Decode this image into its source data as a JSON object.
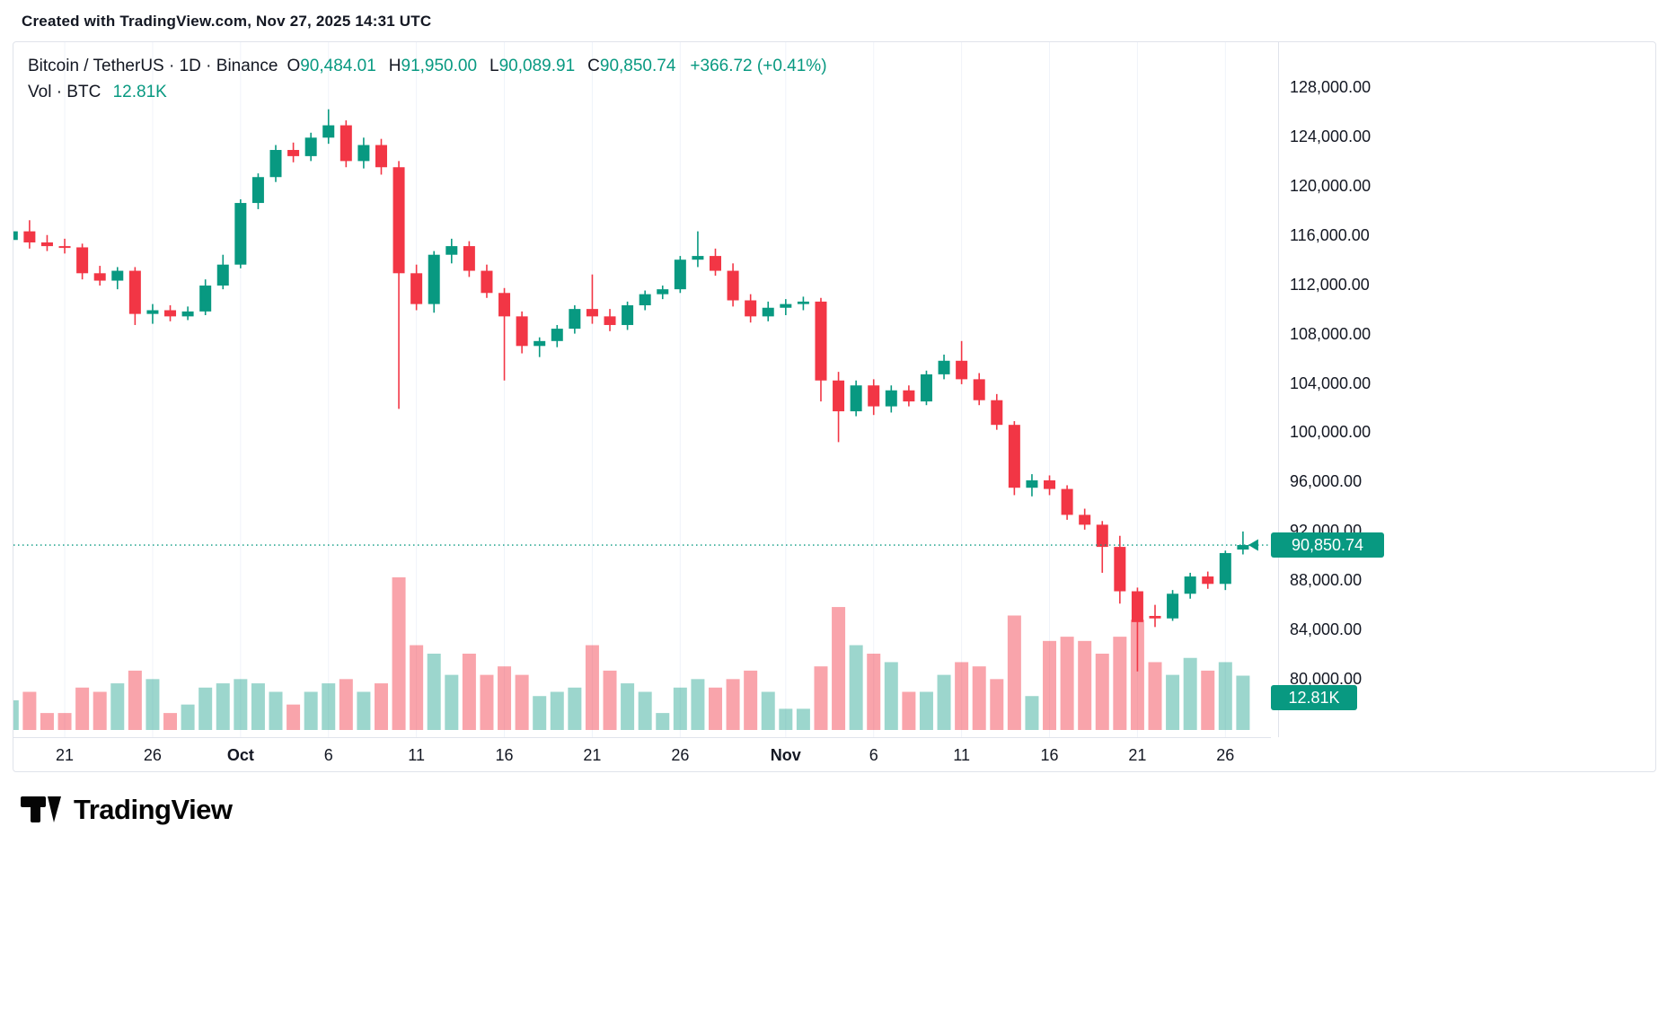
{
  "attribution": "Created with TradingView.com, Nov 27, 2025 14:31 UTC",
  "legend": {
    "symbol": "Bitcoin / TetherUS · 1D · Binance",
    "o_label": "O",
    "o_value": "90,484.01",
    "h_label": "H",
    "h_value": "91,950.00",
    "l_label": "L",
    "l_value": "90,089.91",
    "c_label": "C",
    "c_value": "90,850.74",
    "change": "+366.72 (+0.41%)",
    "vol_label": "Vol · BTC",
    "vol_value": "12.81K"
  },
  "price_axis": {
    "current_price_badge": "90,850.74",
    "volume_badge": "12.81K"
  },
  "footer": {
    "brand": "TradingView"
  },
  "colors": {
    "up": "#089981",
    "down": "#F23645",
    "vol_up": "rgba(8,153,129,0.40)",
    "vol_down": "rgba(242,54,69,0.45)",
    "grid": "#f0f3fa",
    "axis_text": "#131722",
    "badge_bg": "#089981",
    "badge_text": "#ffffff"
  },
  "chart_data": {
    "type": "candlestick",
    "title": "Bitcoin / TetherUS · 1D · Binance",
    "symbol": "Bitcoin / TetherUS",
    "interval": "1D",
    "exchange": "Binance",
    "last": {
      "open": 90484.01,
      "high": 91950.0,
      "low": 90089.91,
      "close": 90850.74,
      "change_text": "+366.72 (+0.41%)"
    },
    "current_price": 90850.74,
    "current_volume_k_btc": 12.81,
    "volume_unit": "K BTC",
    "y_axis": {
      "min": 80000,
      "max": 128000,
      "tick_step": 4000
    },
    "y_tick_labels": [
      "128,000.00",
      "124,000.00",
      "120,000.00",
      "116,000.00",
      "112,000.00",
      "108,000.00",
      "104,000.00",
      "100,000.00",
      "96,000.00",
      "92,000.00",
      "88,000.00",
      "84,000.00",
      "80,000.00"
    ],
    "x_ticks": [
      {
        "text": "21",
        "i": 3,
        "bold": false
      },
      {
        "text": "26",
        "i": 8,
        "bold": false
      },
      {
        "text": "Oct",
        "i": 13,
        "bold": true
      },
      {
        "text": "6",
        "i": 18,
        "bold": false
      },
      {
        "text": "11",
        "i": 23,
        "bold": false
      },
      {
        "text": "16",
        "i": 28,
        "bold": false
      },
      {
        "text": "21",
        "i": 33,
        "bold": false
      },
      {
        "text": "26",
        "i": 38,
        "bold": false
      },
      {
        "text": "Nov",
        "i": 44,
        "bold": true
      },
      {
        "text": "6",
        "i": 49,
        "bold": false
      },
      {
        "text": "11",
        "i": 54,
        "bold": false
      },
      {
        "text": "16",
        "i": 59,
        "bold": false
      },
      {
        "text": "21",
        "i": 64,
        "bold": false
      },
      {
        "text": "26",
        "i": 69,
        "bold": false
      }
    ],
    "columns": [
      "date",
      "open",
      "high",
      "low",
      "close",
      "volume_k_btc"
    ],
    "candles": [
      [
        "Sep 18",
        115600,
        116900,
        115100,
        116300,
        7
      ],
      [
        "Sep 19",
        116300,
        117200,
        114900,
        115400,
        9
      ],
      [
        "Sep 20",
        115400,
        116000,
        114700,
        115100,
        4
      ],
      [
        "Sep 21",
        115100,
        115700,
        114500,
        115000,
        4
      ],
      [
        "Sep 22",
        115000,
        115300,
        112400,
        112900,
        10
      ],
      [
        "Sep 23",
        112900,
        113500,
        111900,
        112300,
        9
      ],
      [
        "Sep 24",
        112300,
        113400,
        111600,
        113100,
        11
      ],
      [
        "Sep 25",
        113100,
        113400,
        108700,
        109600,
        14
      ],
      [
        "Sep 26",
        109600,
        110400,
        108800,
        109900,
        12
      ],
      [
        "Sep 27",
        109900,
        110300,
        109000,
        109400,
        4
      ],
      [
        "Sep 28",
        109400,
        110200,
        109100,
        109800,
        6
      ],
      [
        "Sep 29",
        109800,
        112400,
        109500,
        111900,
        10
      ],
      [
        "Sep 30",
        111900,
        114400,
        111600,
        113600,
        11
      ],
      [
        "Oct 1",
        113600,
        118900,
        113300,
        118600,
        12
      ],
      [
        "Oct 2",
        118600,
        121000,
        118100,
        120700,
        11
      ],
      [
        "Oct 3",
        120700,
        123300,
        120300,
        122900,
        9
      ],
      [
        "Oct 4",
        122900,
        123500,
        121900,
        122400,
        6
      ],
      [
        "Oct 5",
        122400,
        124300,
        122000,
        123900,
        9
      ],
      [
        "Oct 6",
        123900,
        126200,
        123400,
        124900,
        11
      ],
      [
        "Oct 7",
        124900,
        125300,
        121500,
        122000,
        12
      ],
      [
        "Oct 8",
        122000,
        123900,
        121400,
        123300,
        9
      ],
      [
        "Oct 9",
        123300,
        123800,
        120900,
        121500,
        11
      ],
      [
        "Oct 10",
        121500,
        122000,
        101900,
        112900,
        36
      ],
      [
        "Oct 11",
        112900,
        113600,
        109900,
        110400,
        20
      ],
      [
        "Oct 12",
        110400,
        114700,
        109700,
        114400,
        18
      ],
      [
        "Oct 13",
        114400,
        115700,
        113700,
        115100,
        13
      ],
      [
        "Oct 14",
        115100,
        115500,
        112600,
        113100,
        18
      ],
      [
        "Oct 15",
        113100,
        113600,
        110900,
        111300,
        13
      ],
      [
        "Oct 16",
        111300,
        111700,
        104200,
        109400,
        15
      ],
      [
        "Oct 17",
        109400,
        109800,
        106400,
        107000,
        13
      ],
      [
        "Oct 18",
        107000,
        107700,
        106100,
        107400,
        8
      ],
      [
        "Oct 19",
        107400,
        108700,
        106900,
        108400,
        9
      ],
      [
        "Oct 20",
        108400,
        110300,
        108000,
        110000,
        10
      ],
      [
        "Oct 21",
        110000,
        112800,
        108800,
        109400,
        20
      ],
      [
        "Oct 22",
        109400,
        110000,
        108200,
        108700,
        14
      ],
      [
        "Oct 23",
        108700,
        110600,
        108300,
        110300,
        11
      ],
      [
        "Oct 24",
        110300,
        111500,
        109900,
        111200,
        9
      ],
      [
        "Oct 25",
        111200,
        111900,
        110800,
        111600,
        4
      ],
      [
        "Oct 26",
        111600,
        114300,
        111300,
        114000,
        10
      ],
      [
        "Oct 27",
        114000,
        116300,
        113400,
        114300,
        12
      ],
      [
        "Oct 28",
        114300,
        114900,
        112700,
        113100,
        10
      ],
      [
        "Oct 29",
        113100,
        113700,
        110200,
        110700,
        12
      ],
      [
        "Oct 30",
        110700,
        111200,
        108900,
        109400,
        14
      ],
      [
        "Oct 31",
        109400,
        110600,
        109000,
        110100,
        9
      ],
      [
        "Nov 1",
        110100,
        110800,
        109500,
        110400,
        5
      ],
      [
        "Nov 2",
        110400,
        111000,
        109900,
        110600,
        5
      ],
      [
        "Nov 3",
        110600,
        110900,
        102500,
        104200,
        15
      ],
      [
        "Nov 4",
        104200,
        104900,
        99200,
        101700,
        29
      ],
      [
        "Nov 5",
        101700,
        104200,
        101300,
        103800,
        20
      ],
      [
        "Nov 6",
        103800,
        104300,
        101400,
        102100,
        18
      ],
      [
        "Nov 7",
        102100,
        103800,
        101600,
        103400,
        16
      ],
      [
        "Nov 8",
        103400,
        103800,
        102100,
        102500,
        9
      ],
      [
        "Nov 9",
        102500,
        105000,
        102200,
        104700,
        9
      ],
      [
        "Nov 10",
        104700,
        106300,
        104300,
        105800,
        13
      ],
      [
        "Nov 11",
        105800,
        107400,
        103900,
        104300,
        16
      ],
      [
        "Nov 12",
        104300,
        104800,
        102200,
        102600,
        15
      ],
      [
        "Nov 13",
        102600,
        103100,
        100200,
        100600,
        12
      ],
      [
        "Nov 14",
        100600,
        100900,
        94900,
        95500,
        27
      ],
      [
        "Nov 15",
        95500,
        96600,
        94800,
        96100,
        8
      ],
      [
        "Nov 16",
        96100,
        96500,
        94900,
        95400,
        21
      ],
      [
        "Nov 17",
        95400,
        95700,
        92900,
        93300,
        22
      ],
      [
        "Nov 18",
        93300,
        93800,
        92100,
        92500,
        21
      ],
      [
        "Nov 19",
        92500,
        92800,
        88600,
        90700,
        18
      ],
      [
        "Nov 20",
        90700,
        91600,
        86100,
        87100,
        22
      ],
      [
        "Nov 21",
        87100,
        87400,
        80600,
        84600,
        26
      ],
      [
        "Nov 22",
        85100,
        86000,
        84200,
        84900,
        16
      ],
      [
        "Nov 23",
        84900,
        87200,
        84700,
        86900,
        13
      ],
      [
        "Nov 24",
        86900,
        88600,
        86500,
        88300,
        17
      ],
      [
        "Nov 25",
        88300,
        88700,
        87300,
        87700,
        14
      ],
      [
        "Nov 26",
        87700,
        90400,
        87200,
        90200,
        16
      ],
      [
        "Nov 27",
        90484.01,
        91950.0,
        90089.91,
        90850.74,
        12.81
      ]
    ]
  }
}
